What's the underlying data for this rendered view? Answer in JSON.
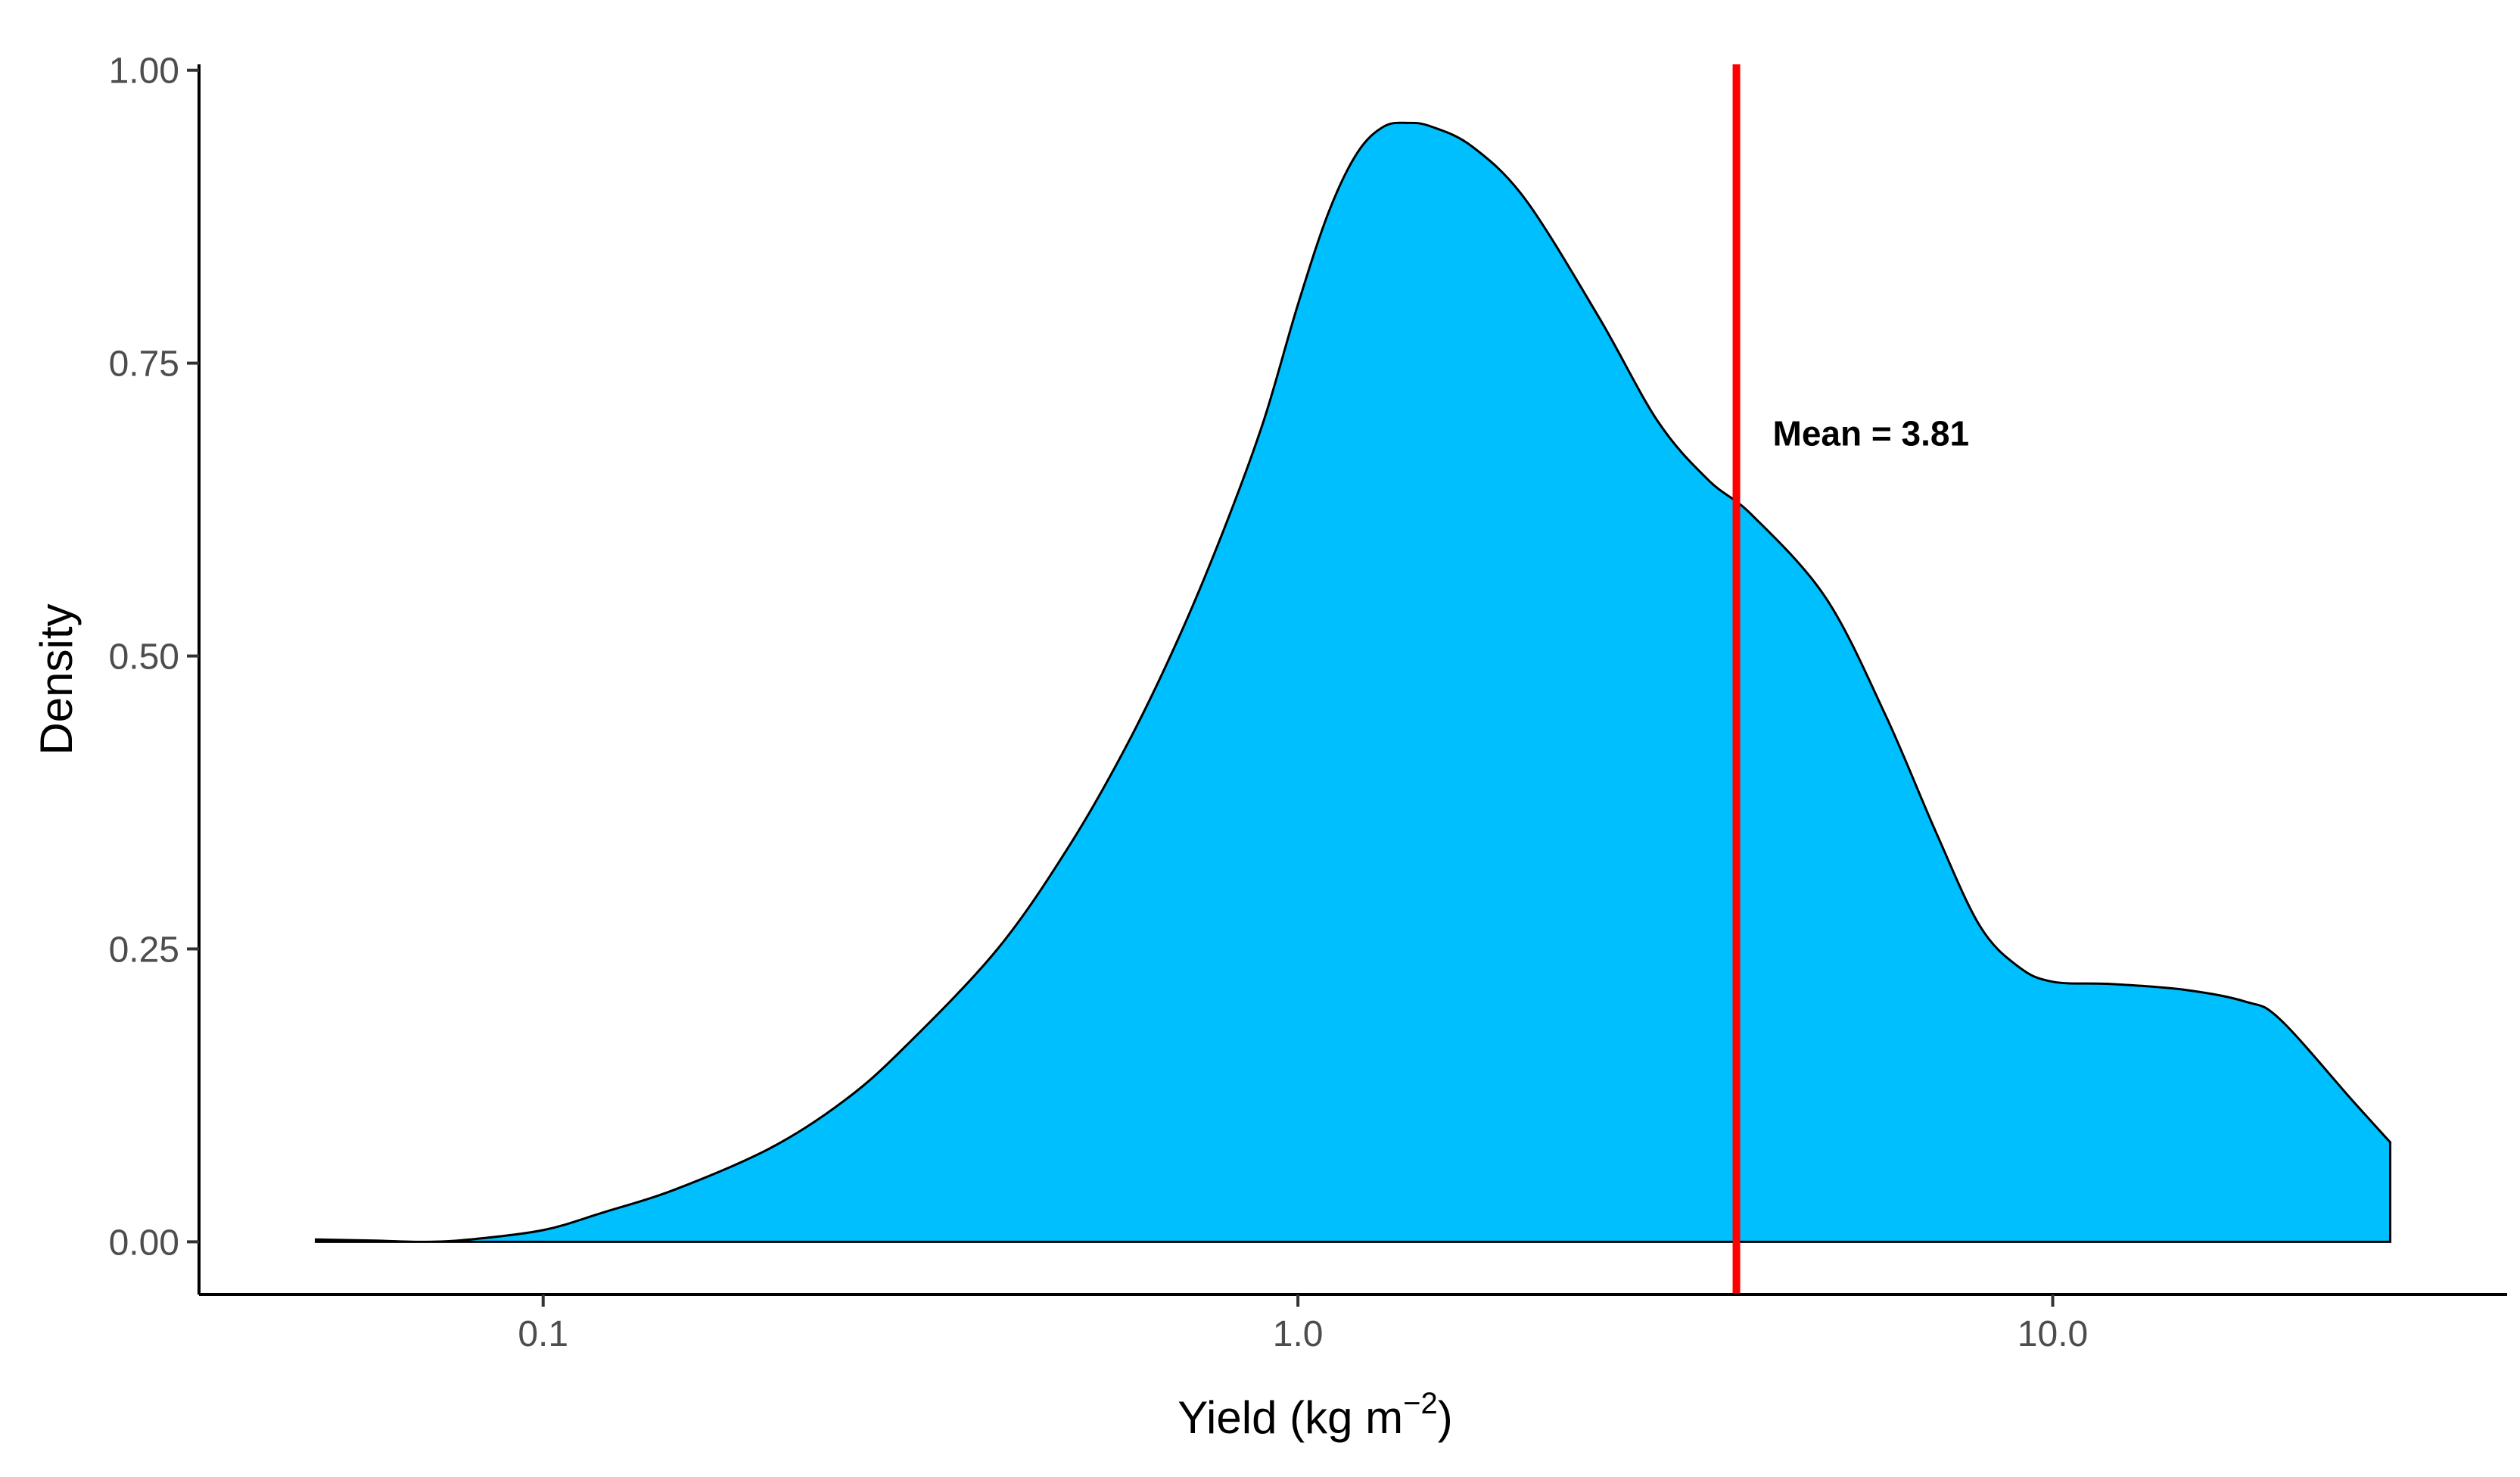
{
  "chart_data": {
    "type": "area",
    "title": "",
    "xlabel": "Yield (kg m",
    "xlabel_superscript": "−2",
    "xlabel_close": ")",
    "ylabel": "Density",
    "x_scale": "log10",
    "xlim": [
      0.035,
      40
    ],
    "ylim": [
      -0.045,
      1.005
    ],
    "x_ticks": [
      0.1,
      1.0,
      10.0
    ],
    "x_tick_labels": [
      "0.1",
      "1.0",
      "10.0"
    ],
    "y_ticks": [
      0,
      0.25,
      0.5,
      0.75,
      1.0
    ],
    "y_tick_labels": [
      "0.00",
      "0.25",
      "0.50",
      "0.75",
      "1.00"
    ],
    "grid": false,
    "series": [
      {
        "fill_color": "#00BFFF",
        "x": [
          0.05,
          0.06,
          0.07,
          0.08,
          0.1,
          0.12,
          0.15,
          0.2,
          0.25,
          0.3,
          0.4,
          0.5,
          0.6,
          0.7,
          0.8,
          0.9,
          1.0,
          1.1,
          1.2,
          1.3,
          1.4,
          1.5,
          1.7,
          2.0,
          2.5,
          3.0,
          3.5,
          4.0,
          5.0,
          6.0,
          7.0,
          8.0,
          9.0,
          10.0,
          12.0,
          15.0,
          18.0,
          20.0,
          25.0,
          28.0
        ],
        "y": [
          0.002,
          0.001,
          0.0,
          0.002,
          0.01,
          0.025,
          0.045,
          0.08,
          0.12,
          0.165,
          0.25,
          0.34,
          0.43,
          0.52,
          0.61,
          0.7,
          0.8,
          0.88,
          0.93,
          0.952,
          0.955,
          0.952,
          0.935,
          0.89,
          0.79,
          0.7,
          0.65,
          0.62,
          0.55,
          0.45,
          0.35,
          0.27,
          0.235,
          0.222,
          0.22,
          0.215,
          0.205,
          0.19,
          0.12,
          0.085
        ]
      }
    ],
    "annotations": [
      {
        "type": "vline",
        "x": 3.81,
        "color": "#FF0000",
        "label": "Mean = 3.81",
        "label_y": 0.69
      }
    ]
  }
}
